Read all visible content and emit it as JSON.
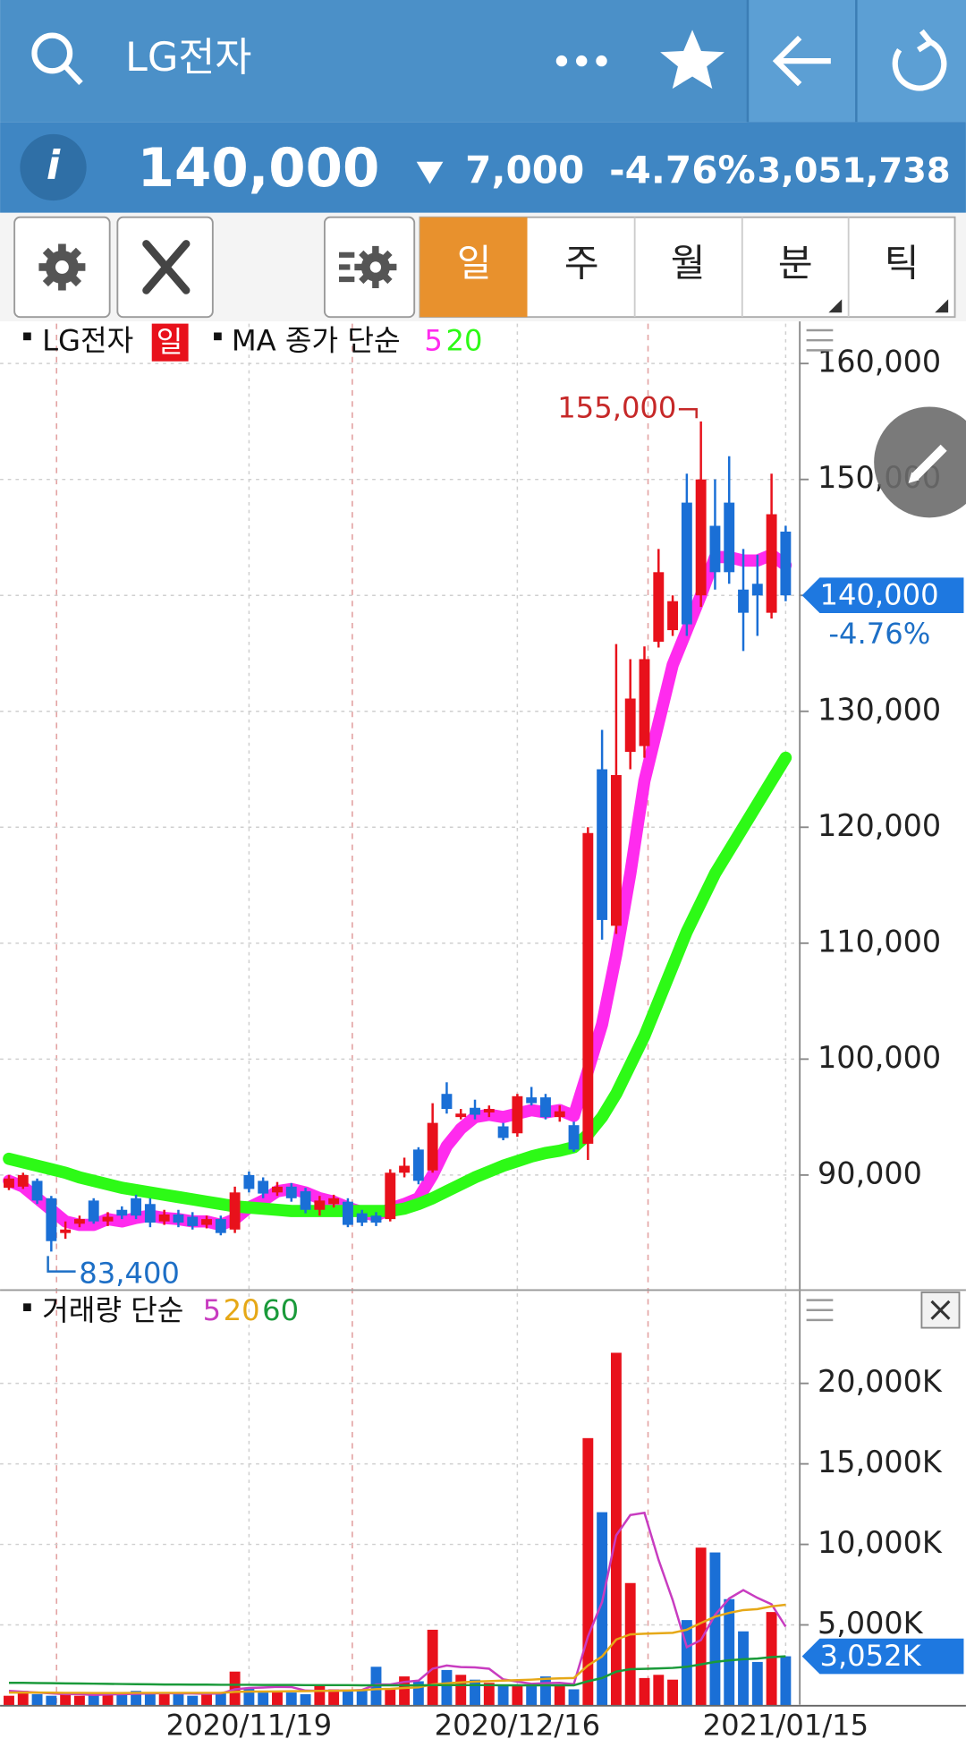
{
  "header": {
    "title": "LG전자"
  },
  "quote": {
    "price": "140,000",
    "change": "7,000",
    "change_pct": "-4.76%",
    "volume": "3,051,738"
  },
  "tabs": [
    "일",
    "주",
    "월",
    "분",
    "틱"
  ],
  "chart_data": [
    {
      "type": "candlestick",
      "legend_label": "LG전자",
      "period_label": "일",
      "ma_label": "MA 종가 단순",
      "up_color": "#e8111b",
      "down_color": "#1a6fd6",
      "grid": true,
      "ylim": [
        80170,
        163630
      ],
      "yticks": [
        {
          "value": 90000,
          "label": "90,000"
        },
        {
          "value": 100000,
          "label": "100,000"
        },
        {
          "value": 110000,
          "label": "110,000"
        },
        {
          "value": 120000,
          "label": "120,000"
        },
        {
          "value": 130000,
          "label": "130,000"
        },
        {
          "value": 140000,
          "label": "140,000"
        },
        {
          "value": 150000,
          "label": "150,000"
        },
        {
          "value": 160000,
          "label": "160,000"
        }
      ],
      "open": [
        88900,
        89000,
        89500,
        88000,
        85000,
        85800,
        87800,
        86000,
        87000,
        88000,
        87500,
        86000,
        86600,
        86400,
        85700,
        86200,
        85300,
        90000,
        89500,
        88500,
        89000,
        88600,
        87000,
        87500,
        87700,
        86700,
        86500,
        86200,
        90200,
        92200,
        90400,
        97000,
        95000,
        95800,
        95400,
        94200,
        93600,
        96700,
        96700,
        95000,
        94300,
        92700,
        125000,
        111500,
        126500,
        127000,
        136000,
        137000,
        148000,
        140000,
        146000,
        148000,
        140500,
        141000,
        138500,
        145500
      ],
      "high": [
        90000,
        90200,
        89700,
        88200,
        86000,
        86500,
        88000,
        86800,
        87300,
        88300,
        88000,
        87000,
        87000,
        86800,
        86500,
        86500,
        89000,
        90300,
        89800,
        89400,
        89300,
        88900,
        88200,
        88300,
        88000,
        87000,
        86800,
        90500,
        91500,
        92400,
        96200,
        98000,
        95700,
        96500,
        96000,
        94500,
        97000,
        97600,
        97000,
        96000,
        94600,
        120000,
        128400,
        135800,
        134500,
        135600,
        144000,
        140000,
        150500,
        155000,
        150000,
        152000,
        144000,
        143500,
        150500,
        146000
      ],
      "low": [
        88700,
        88800,
        87500,
        83400,
        84500,
        85500,
        85800,
        85600,
        86200,
        86200,
        85500,
        85700,
        85500,
        85300,
        85400,
        84800,
        85000,
        88500,
        88000,
        88200,
        87700,
        86700,
        86500,
        87200,
        85500,
        85600,
        85600,
        86000,
        89800,
        89200,
        90200,
        95300,
        94800,
        94800,
        95000,
        93000,
        93300,
        96000,
        94800,
        94600,
        92000,
        91300,
        110300,
        110800,
        125000,
        126000,
        135500,
        136500,
        136500,
        139000,
        140500,
        141000,
        135200,
        136500,
        138000,
        139500
      ],
      "close": [
        89700,
        90000,
        87800,
        84300,
        85300,
        86200,
        86000,
        86400,
        86500,
        86500,
        85900,
        86600,
        85900,
        85600,
        86200,
        85000,
        88500,
        88800,
        88400,
        89000,
        88000,
        87000,
        87800,
        88000,
        85700,
        85900,
        85900,
        90200,
        90800,
        89500,
        94500,
        95700,
        95300,
        95200,
        95700,
        93200,
        96800,
        96200,
        95000,
        95500,
        92200,
        119500,
        112000,
        124500,
        131100,
        134500,
        142000,
        139500,
        137500,
        150000,
        142000,
        142000,
        138500,
        140000,
        147000,
        140000
      ],
      "series": [
        {
          "name": "5",
          "color": "#ff2bee",
          "values": [
            89500,
            89000,
            88000,
            87000,
            86000,
            85700,
            85700,
            86200,
            86000,
            86300,
            86500,
            86300,
            86200,
            86000,
            86000,
            85700,
            86200,
            87200,
            87800,
            88600,
            88800,
            88500,
            88000,
            87700,
            87200,
            86800,
            86500,
            87100,
            87500,
            88000,
            90000,
            92500,
            94000,
            95000,
            95200,
            95000,
            95300,
            95600,
            95400,
            95600,
            95100,
            99000,
            103000,
            109000,
            116000,
            124000,
            129000,
            134000,
            137000,
            140000,
            143300,
            143300,
            143000,
            143000,
            143500,
            142600
          ]
        },
        {
          "name": "20",
          "color": "#2dfa16",
          "values": [
            91400,
            91100,
            90800,
            90500,
            90200,
            89800,
            89500,
            89200,
            88900,
            88700,
            88500,
            88300,
            88100,
            87900,
            87700,
            87500,
            87300,
            87200,
            87100,
            87000,
            86900,
            86900,
            86900,
            86900,
            86900,
            86900,
            86900,
            86900,
            87100,
            87500,
            88000,
            88600,
            89200,
            89800,
            90300,
            90800,
            91200,
            91600,
            91900,
            92100,
            92400,
            93500,
            95000,
            97000,
            99500,
            102000,
            105000,
            108000,
            111000,
            113500,
            116000,
            118000,
            120000,
            122000,
            124000,
            126000
          ]
        }
      ],
      "max_label": {
        "value": 155000,
        "label": "155,000"
      },
      "min_label": {
        "value": 83400,
        "label": "83,400"
      },
      "current_label": {
        "value": 140000,
        "label": "140,000"
      },
      "change_label": "-4.76%"
    },
    {
      "type": "bar",
      "legend_label": "거래량 단순",
      "grid": true,
      "categories": [
        null,
        null,
        null,
        null,
        null,
        null,
        null,
        null,
        null,
        null,
        null,
        null,
        null,
        null,
        null,
        null,
        null,
        "2020/11/19",
        null,
        null,
        null,
        null,
        null,
        null,
        null,
        null,
        null,
        null,
        null,
        null,
        null,
        null,
        null,
        null,
        null,
        null,
        "2020/12/16",
        null,
        null,
        null,
        null,
        null,
        null,
        null,
        null,
        null,
        null,
        null,
        null,
        null,
        null,
        null,
        null,
        null,
        null,
        "2021/01/15"
      ],
      "ylim": [
        0,
        25860
      ],
      "yticks": [
        {
          "value": 5000,
          "label": "5,000K"
        },
        {
          "value": 10000,
          "label": "10,000K"
        },
        {
          "value": 15000,
          "label": "15,000K"
        },
        {
          "value": 20000,
          "label": "20,000K"
        }
      ],
      "values": [
        600,
        900,
        700,
        600,
        700,
        600,
        700,
        700,
        800,
        900,
        700,
        800,
        700,
        600,
        700,
        800,
        2100,
        1100,
        800,
        900,
        800,
        700,
        1200,
        1000,
        900,
        1000,
        2400,
        1000,
        1800,
        1500,
        4700,
        2200,
        1900,
        1600,
        1400,
        1200,
        1300,
        1200,
        1800,
        1300,
        1000,
        16600,
        12000,
        21900,
        7600,
        1700,
        1900,
        1600,
        5300,
        9800,
        9500,
        6600,
        4600,
        2700,
        5800,
        3052
      ],
      "series": [
        {
          "name": "5",
          "color": "#c83cc0",
          "values": [
            900,
            850,
            800,
            750,
            700,
            700,
            650,
            680,
            700,
            720,
            740,
            760,
            750,
            740,
            720,
            740,
            1000,
            1080,
            1110,
            1150,
            1140,
            920,
            900,
            920,
            920,
            960,
            1300,
            1300,
            1460,
            1540,
            2280,
            2480,
            2380,
            2360,
            2280,
            1620,
            1480,
            1340,
            1380,
            1400,
            1320,
            4280,
            6420,
            10560,
            11820,
            11960,
            9040,
            6540,
            3620,
            4060,
            5620,
            6640,
            7160,
            6680,
            6280,
            4890
          ]
        },
        {
          "name": "20",
          "color": "#e6a817",
          "values": [
            800,
            800,
            800,
            790,
            780,
            780,
            770,
            770,
            770,
            780,
            780,
            780,
            780,
            780,
            780,
            780,
            840,
            860,
            860,
            870,
            880,
            890,
            900,
            910,
            920,
            940,
            1010,
            1030,
            1080,
            1120,
            1300,
            1370,
            1430,
            1480,
            1510,
            1540,
            1570,
            1600,
            1650,
            1680,
            1700,
            2480,
            3040,
            4090,
            4410,
            4450,
            4480,
            4510,
            4700,
            5120,
            5510,
            5750,
            5920,
            5980,
            6150,
            6250
          ]
        },
        {
          "name": "60",
          "color": "#1a9a3a",
          "values": [
            1400,
            1400,
            1390,
            1380,
            1370,
            1360,
            1350,
            1340,
            1330,
            1320,
            1310,
            1300,
            1300,
            1290,
            1290,
            1280,
            1280,
            1280,
            1270,
            1270,
            1270,
            1260,
            1260,
            1260,
            1260,
            1250,
            1250,
            1250,
            1250,
            1250,
            1260,
            1260,
            1260,
            1260,
            1260,
            1250,
            1250,
            1250,
            1250,
            1250,
            1250,
            1500,
            1700,
            2100,
            2250,
            2270,
            2300,
            2330,
            2400,
            2550,
            2700,
            2800,
            2870,
            2910,
            3000,
            3050
          ]
        }
      ],
      "current_label": {
        "value": 3052,
        "label": "3,052K"
      }
    }
  ]
}
